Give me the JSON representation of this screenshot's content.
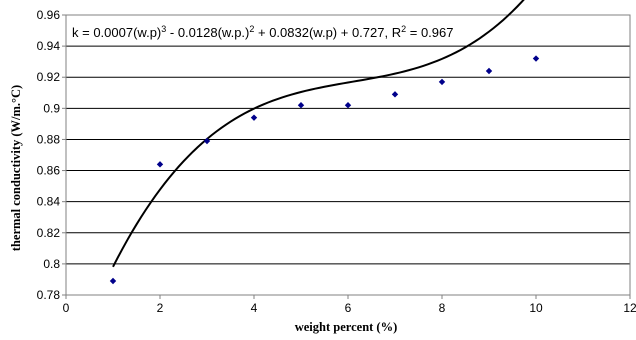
{
  "chart_data": {
    "type": "scatter",
    "xlabel": "weight percent (%)",
    "ylabel": "thermal conductivity (W/m.°C)",
    "xlim": [
      0,
      12
    ],
    "ylim": [
      0.78,
      0.96
    ],
    "x_ticks": [
      "0",
      "2",
      "4",
      "6",
      "8",
      "10",
      "12"
    ],
    "y_ticks": [
      "0.78",
      "0.8",
      "0.82",
      "0.84",
      "0.86",
      "0.88",
      "0.9",
      "0.92",
      "0.94",
      "0.96"
    ],
    "grid": "horizontal",
    "series": [
      {
        "x": [
          1,
          2,
          3,
          4,
          5,
          6,
          7,
          8,
          9,
          10
        ],
        "y": [
          0.789,
          0.864,
          0.879,
          0.894,
          0.902,
          0.902,
          0.909,
          0.917,
          0.924,
          0.932
        ],
        "marker": "diamond",
        "color": "#00008B"
      }
    ],
    "trendline": {
      "type": "polynomial",
      "order": 3,
      "coefficients": [
        0.0007,
        -0.0128,
        0.0832,
        0.727
      ],
      "x_range": [
        1,
        10
      ],
      "color": "#000000"
    },
    "annotation": {
      "p1": "k = 0.0007(w.p)",
      "e1": "3",
      "p2": " - 0.0128(w.p.)",
      "e2": "2",
      "p3": " + 0.0832(w.p) + 0.727, R",
      "e3": "2",
      "p4": " = 0.967"
    }
  }
}
